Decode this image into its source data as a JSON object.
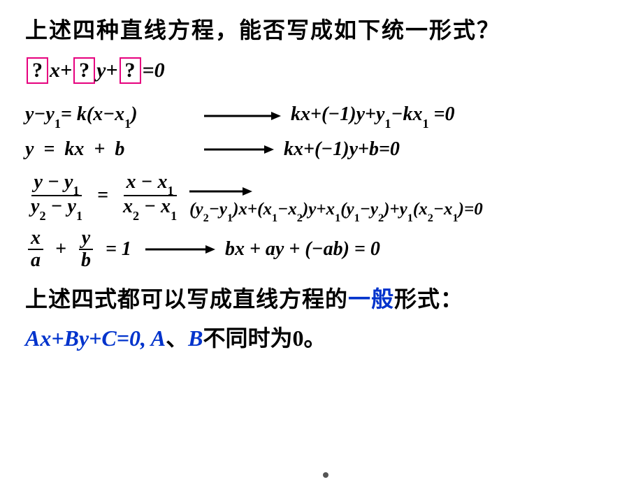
{
  "title": "上述四种直线方程，能否写成如下统一形式？",
  "box": {
    "q": "?",
    "x": "x+",
    "y": "y+",
    "eq": "=0"
  },
  "row1": {
    "lhs": "y−y<sub>1</sub>= k(x−x<sub>1</sub>)",
    "rhs": "kx+(−1)y+y<sub>1</sub>−kx<sub>1</sub> =0"
  },
  "row2": {
    "lhs": "y &nbsp;=&nbsp; kx &nbsp;+&nbsp; b",
    "rhs": "kx+(−1)y+b=0"
  },
  "row3": {
    "frac_l_num": "y − y<sub>1</sub>",
    "frac_l_den": "y<sub>2</sub> − y<sub>1</sub>",
    "frac_r_num": "x − x<sub>1</sub>",
    "frac_r_den": "x<sub>2</sub> − x<sub>1</sub>",
    "rhs": "(y<sub>2</sub>−y<sub>1</sub>)x+(x<sub>1</sub>−x<sub>2</sub>)y+x<sub>1</sub>(y<sub>1</sub>−y<sub>2</sub>)+y<sub>1</sub>(x<sub>2</sub>−x<sub>1</sub>)=0"
  },
  "row4": {
    "frac1_num": "x",
    "frac1_den": "a",
    "frac2_num": "y",
    "frac2_den": "b",
    "eq": "= 1",
    "rhs": "bx + ay + (−ab) = 0"
  },
  "conclusion_pre": "上述四式都可以写成直线方程的",
  "conclusion_hl": "一般",
  "conclusion_post": "形式：",
  "final_eq": "Ax+By+C=0, ",
  "final_A": "A",
  "final_sep": "、",
  "final_B": "B",
  "final_txt": "不同时为0。",
  "colors": {
    "box_border": "#e6007e",
    "highlight": "#0033cc",
    "text": "#000000",
    "bg": "#ffffff"
  },
  "arrow": {
    "length": 90,
    "stroke_width": 3
  }
}
